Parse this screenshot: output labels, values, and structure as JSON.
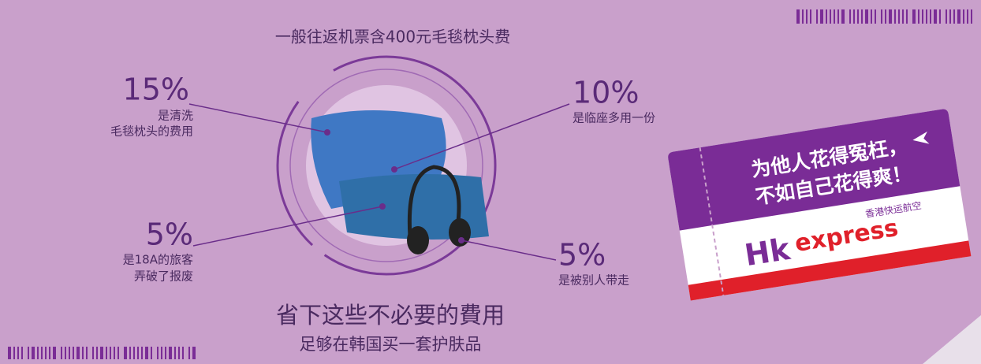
{
  "header": {
    "title": "一般往返机票含400元毛毯枕头费"
  },
  "callouts": [
    {
      "percent": "15%",
      "lines": [
        "是清洗",
        "毛毯枕头的费用"
      ]
    },
    {
      "percent": "10%",
      "lines": [
        "是临座多用一份"
      ]
    },
    {
      "percent": "5%",
      "lines": [
        "是18A的旅客",
        "弄破了报废"
      ]
    },
    {
      "percent": "5%",
      "lines": [
        "是被别人带走"
      ]
    }
  ],
  "footer": {
    "headline": "省下这些不必要的費用",
    "subline": "足够在韩国买一套护肤品"
  },
  "ticket": {
    "slogan": [
      "为他人花得冤枉，",
      "不如自己花得爽！"
    ],
    "brand_cn": "香港快运航空",
    "logo_hk": "Hk",
    "logo_express": "express"
  }
}
